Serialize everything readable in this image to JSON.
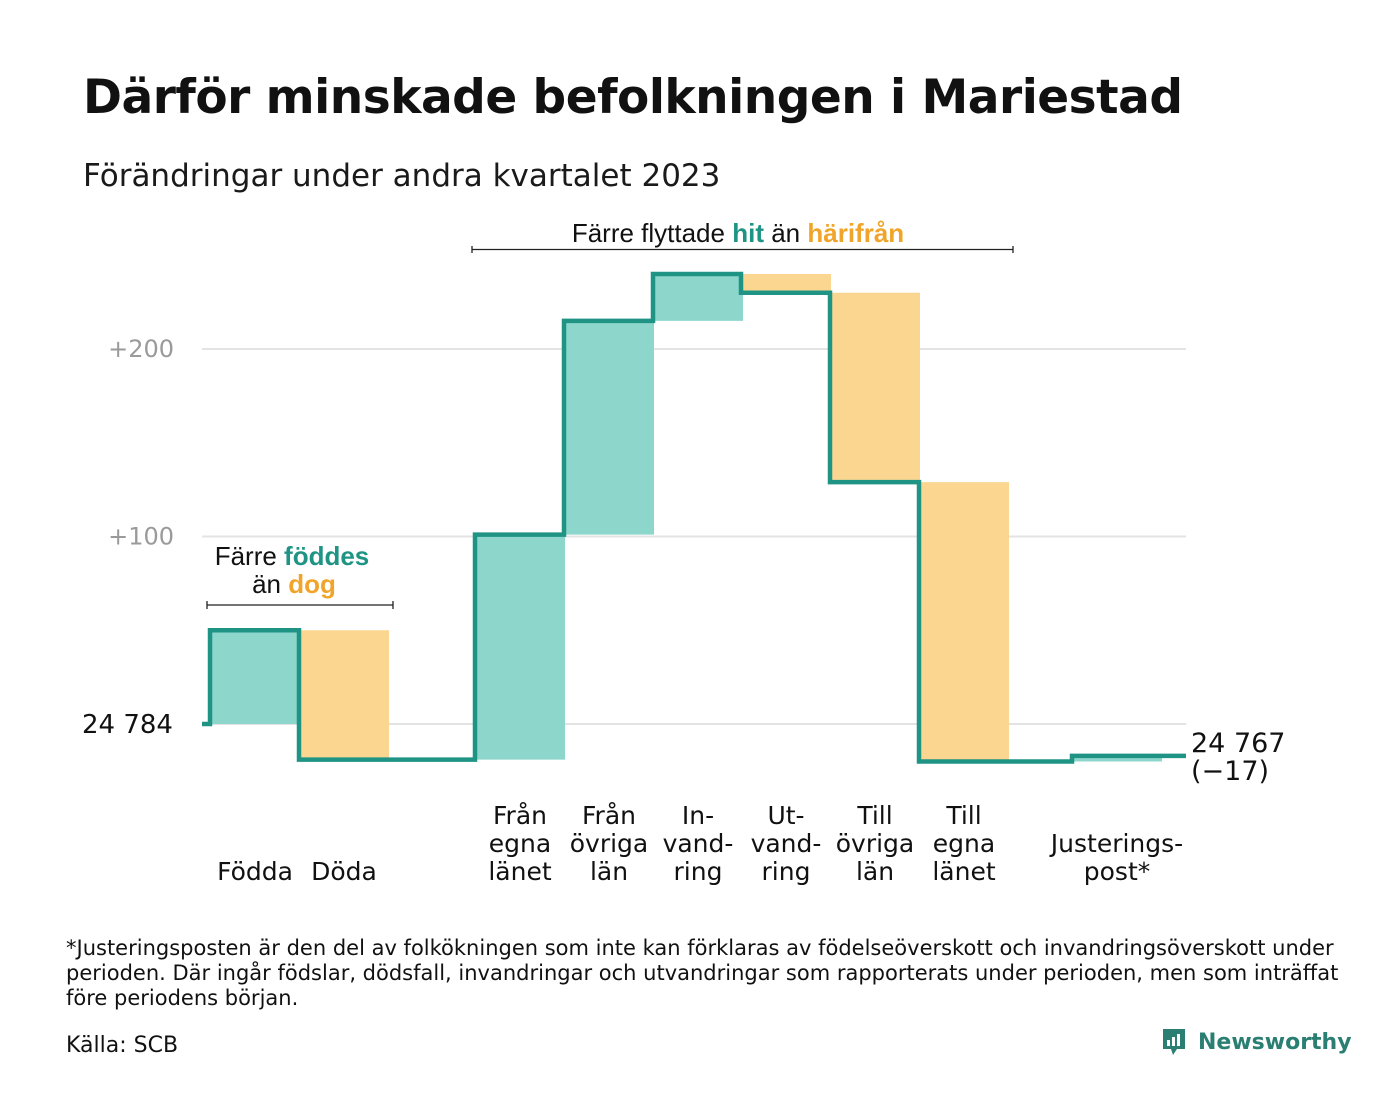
{
  "title": "Därför minskade befolkningen i Mariestad",
  "subtitle": "Förändringar under andra kvartalet 2023",
  "footnote": "*Justeringsposten är den del av folkökningen som inte kan förklaras av födelseöverskott och invandringsöverskott under perioden. Där ingår födslar, dödsfall, invandringar och utvandringar som rapporterats under perioden, men som inträffat före periodens början.",
  "source": "Källa: SCB",
  "brand": "Newsworthy",
  "colors": {
    "increase_fill": "#8dd6cc",
    "decrease_fill": "#fbd691",
    "line": "#1f9485",
    "grid": "#e3e3e3",
    "tick_text": "#9a9a9a",
    "hit_text": "#1f9485",
    "harifran_text": "#f0a52a"
  },
  "chart_data": {
    "type": "waterfall",
    "start": {
      "label": "24  784",
      "value": 24784
    },
    "end": {
      "label": "24 767",
      "change_label": "(−17)",
      "value": 24767
    },
    "categories": [
      {
        "lines": [
          "Födda"
        ],
        "delta": 50,
        "kind": "increase"
      },
      {
        "lines": [
          "Döda"
        ],
        "delta": -69,
        "kind": "decrease"
      },
      {
        "lines": [
          "Från",
          "egna",
          "länet"
        ],
        "delta": 120,
        "kind": "increase"
      },
      {
        "lines": [
          "Från",
          "övriga",
          "län"
        ],
        "delta": 114,
        "kind": "increase"
      },
      {
        "lines": [
          "In-",
          "vand-",
          "ring"
        ],
        "delta": 25,
        "kind": "increase"
      },
      {
        "lines": [
          "Ut-",
          "vand-",
          "ring"
        ],
        "delta": -10,
        "kind": "decrease"
      },
      {
        "lines": [
          "Till",
          "övriga",
          "län"
        ],
        "delta": -101,
        "kind": "decrease"
      },
      {
        "lines": [
          "Till",
          "egna",
          "länet"
        ],
        "delta": -149,
        "kind": "decrease"
      },
      {
        "lines": [
          "Justerings-",
          "post*"
        ],
        "delta": 3,
        "kind": "increase"
      }
    ],
    "y_ticks": [
      {
        "label": "+200",
        "value": 200
      },
      {
        "label": "+100",
        "value": 100
      }
    ],
    "annotations": {
      "births_deaths": {
        "text1": "Färre ",
        "highlight1": "föddes",
        "text2": "än ",
        "highlight2": "dog"
      },
      "migration": {
        "text1": "Färre flyttade ",
        "highlight1": "hit",
        "text2": " än ",
        "highlight2": "härifrån"
      }
    }
  }
}
